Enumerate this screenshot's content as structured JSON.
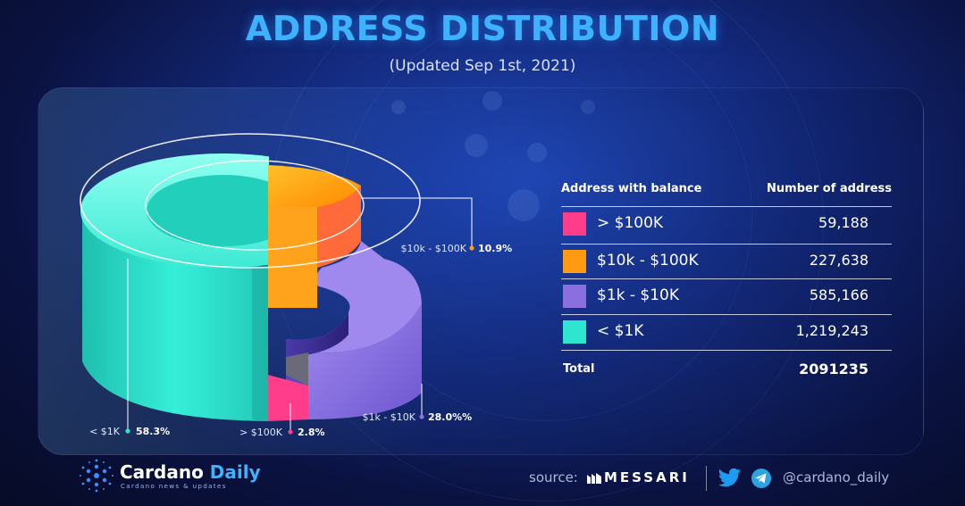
{
  "header": {
    "title": "ADDRESS DISTRIBUTION",
    "subtitle": "(Updated Sep 1st, 2021)"
  },
  "chart_data": {
    "type": "pie",
    "style": "3d-donut",
    "title": "ADDRESS DISTRIBUTION",
    "subtitle": "(Updated Sep 1st, 2021)",
    "slices": [
      {
        "label": "> $100K",
        "percent_label": "2.8%",
        "value": 59188,
        "color": "#ff3d8b"
      },
      {
        "label": "$10k - $100K",
        "percent_label": "10.9%",
        "value": 227638,
        "color": "#ff9a12"
      },
      {
        "label": "$1k - $10K",
        "percent_label": "28.0%%",
        "value": 585166,
        "color": "#8a6fe0"
      },
      {
        "label": "< $1K",
        "percent_label": "58.3%",
        "value": 1219243,
        "color": "#2ee6cf"
      }
    ],
    "legend": "right"
  },
  "table": {
    "headers": {
      "balance": "Address with balance",
      "count": "Number of address"
    },
    "rows": [
      {
        "label": "> $100K",
        "value": "59,188",
        "color": "#ff3d8b"
      },
      {
        "label": "$10k - $100K",
        "value": "227,638",
        "color": "#ff9a12"
      },
      {
        "label": "$1k - $10K",
        "value": "585,166",
        "color": "#8a6fe0"
      },
      {
        "label": "< $1K",
        "value": "1,219,243",
        "color": "#2ee6cf"
      }
    ],
    "total_label": "Total",
    "total_value": "2091235"
  },
  "footer": {
    "brand_main": "Cardano",
    "brand_accent": "Daily",
    "brand_tagline": "Cardano news & updates",
    "source_label": "source:",
    "source_name": "MESSARI",
    "handle": "@cardano_daily"
  },
  "icons": {
    "brand": "cardano-logo-icon",
    "source": "messari-logo-icon",
    "twitter": "twitter-icon",
    "telegram": "telegram-icon"
  }
}
